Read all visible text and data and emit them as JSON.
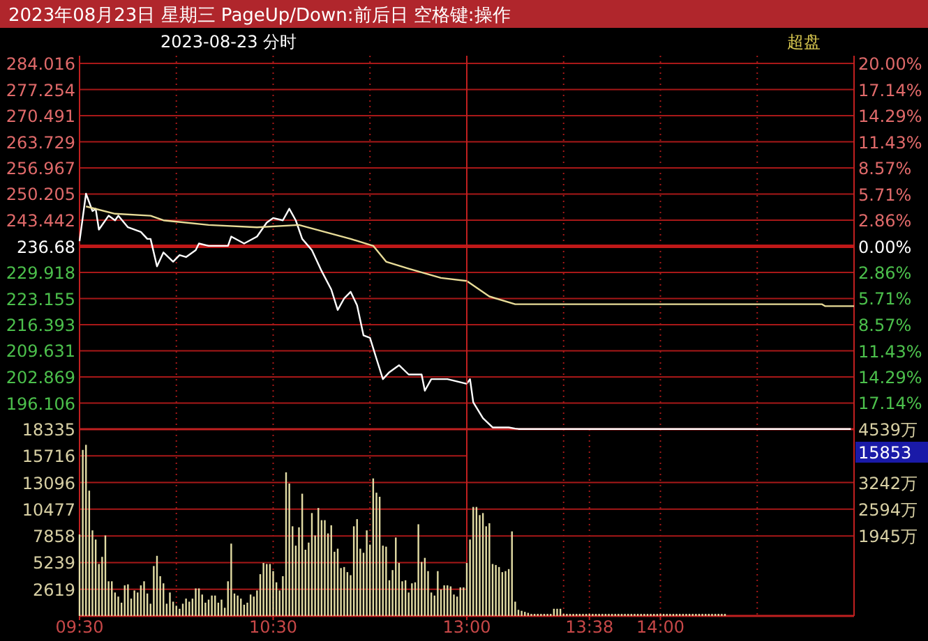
{
  "chart_data": [
    {
      "type": "line",
      "title": "2023年08月23日 星期三 PageUp/Down:前后日 空格键:操作",
      "subtitle": "2023-08-23 分时",
      "series": [
        {
          "color": "#ffffff",
          "x": [
            "2023-08-23T09:30",
            "2023-08-23T09:32",
            "2023-08-23T09:34",
            "2023-08-23T09:35",
            "2023-08-23T09:36",
            "2023-08-23T09:39",
            "2023-08-23T09:41",
            "2023-08-23T09:42",
            "2023-08-23T09:45",
            "2023-08-23T09:49",
            "2023-08-23T09:51",
            "2023-08-23T09:52",
            "2023-08-23T09:54",
            "2023-08-23T09:56",
            "2023-08-23T09:59",
            "2023-08-23T10:01",
            "2023-08-23T10:03",
            "2023-08-23T10:06",
            "2023-08-23T10:07",
            "2023-08-23T10:10",
            "2023-08-23T10:16",
            "2023-08-23T10:17",
            "2023-08-23T10:21",
            "2023-08-23T10:25",
            "2023-08-23T10:28",
            "2023-08-23T10:30",
            "2023-08-23T10:33",
            "2023-08-23T10:35",
            "2023-08-23T10:37",
            "2023-08-23T10:39",
            "2023-08-23T10:42",
            "2023-08-23T10:45",
            "2023-08-23T10:48",
            "2023-08-23T10:50",
            "2023-08-23T10:52",
            "2023-08-23T10:54",
            "2023-08-23T10:56",
            "2023-08-23T10:58",
            "2023-08-23T11:00",
            "2023-08-23T11:02",
            "2023-08-23T11:04",
            "2023-08-23T11:06",
            "2023-08-23T11:09",
            "2023-08-23T11:12",
            "2023-08-23T11:16",
            "2023-08-23T11:17",
            "2023-08-23T11:19",
            "2023-08-23T11:24",
            "2023-08-23T11:30"
          ],
          "values": [
            238.0,
            250.3,
            245.8,
            246.4,
            241.0,
            244.6,
            243.4,
            244.6,
            241.6,
            240.4,
            238.6,
            238.6,
            231.5,
            235.1,
            232.7,
            234.4,
            233.9,
            235.7,
            237.4,
            236.8,
            236.8,
            239.2,
            237.4,
            239.2,
            242.8,
            244.0,
            243.4,
            246.4,
            243.4,
            238.6,
            235.7,
            230.3,
            225.5,
            220.2,
            223.2,
            224.9,
            221.4,
            213.6,
            213.0,
            207.6,
            202.3,
            204.1,
            205.9,
            203.5,
            203.5,
            199.3,
            202.3,
            202.3,
            201.1
          ]
        },
        {
          "color": "#e8dc98",
          "x": [
            "2023-08-23T09:32",
            "2023-08-23T09:41",
            "2023-08-23T09:52",
            "2023-08-23T09:56",
            "2023-08-23T10:10",
            "2023-08-23T10:25",
            "2023-08-23T10:38",
            "2023-08-23T10:46",
            "2023-08-23T10:54",
            "2023-08-23T11:01",
            "2023-08-23T11:05",
            "2023-08-23T11:12",
            "2023-08-23T11:22",
            "2023-08-23T11:30"
          ],
          "values": [
            247.0,
            245.1,
            244.6,
            243.4,
            242.2,
            241.6,
            242.2,
            240.4,
            238.6,
            236.8,
            232.7,
            230.9,
            228.5,
            227.7
          ]
        }
      ],
      "xlim": [
        "2023-08-23T09:30",
        "2023-08-23T11:30"
      ],
      "xticks": [
        {
          "value": "2023-08-23T09:30",
          "label": null
        },
        {
          "value": "2023-08-23T10:00",
          "label": null
        },
        {
          "value": "2023-08-23T10:30",
          "label": null
        },
        {
          "value": "2023-08-23T11:00",
          "label": null
        }
      ],
      "ylim": [
        189.344,
        286
      ],
      "yticks": [
        284.016,
        277.254,
        270.491,
        263.729,
        256.967,
        250.205,
        243.442,
        236.68,
        229.918,
        223.155,
        216.393,
        209.631,
        202.869,
        196.106
      ],
      "ref_lines": [
        {
          "axis": "y",
          "value": 236.68,
          "color": "#c01818"
        }
      ],
      "grid": true,
      "tick_labels": "y"
    },
    {
      "type": "line",
      "annotations": [
        "超盘"
      ],
      "series": [
        {
          "color": "#ffffff",
          "x": [
            "2023-08-23T13:00",
            "2023-08-23T13:01",
            "2023-08-23T13:02",
            "2023-08-23T13:05",
            "2023-08-23T13:08",
            "2023-08-23T13:13",
            "2023-08-23T13:15",
            "2023-08-23T13:16",
            "2023-08-23T14:59"
          ],
          "values": [
            201.1,
            202.3,
            196.3,
            192.2,
            189.8,
            189.8,
            189.5,
            189.4,
            189.4
          ]
        },
        {
          "color": "#e8dc98",
          "x": [
            "2023-08-23T13:00",
            "2023-08-23T13:07",
            "2023-08-23T13:15",
            "2023-08-23T14:50",
            "2023-08-23T14:51",
            "2023-08-23T15:00"
          ],
          "values": [
            227.7,
            223.7,
            221.7,
            221.7,
            221.2,
            221.2
          ]
        }
      ],
      "xlim": [
        "2023-08-23T13:00",
        "2023-08-23T15:00"
      ],
      "xticks": [
        {
          "value": "2023-08-23T13:00",
          "label": null
        },
        {
          "value": "2023-08-23T13:30",
          "label": null
        },
        {
          "value": "2023-08-23T14:00",
          "label": null
        },
        {
          "value": "2023-08-23T14:30",
          "label": null
        }
      ],
      "ylim": [
        189.344,
        286
      ],
      "y2lim": [
        -20,
        20.84
      ],
      "y2ticks": [
        {
          "value": 20,
          "label": "20.00%"
        },
        {
          "value": 17.14,
          "label": "17.14%"
        },
        {
          "value": 14.29,
          "label": "14.29%"
        },
        {
          "value": 11.43,
          "label": "11.43%"
        },
        {
          "value": 8.57,
          "label": "8.57%"
        },
        {
          "value": 5.71,
          "label": "5.71%"
        },
        {
          "value": 2.86,
          "label": "2.86%"
        },
        {
          "value": 0,
          "label": "0.00%"
        },
        {
          "value": -2.86,
          "label": "2.86%"
        },
        {
          "value": -5.71,
          "label": "5.71%"
        },
        {
          "value": -8.57,
          "label": "8.57%"
        },
        {
          "value": -11.43,
          "label": "11.43%"
        },
        {
          "value": -14.29,
          "label": "14.29%"
        },
        {
          "value": -17.14,
          "label": "17.14%"
        }
      ],
      "ref_lines": [
        {
          "axis": "y",
          "value": 236.68,
          "color": "#c01818"
        }
      ],
      "grid": true,
      "tick_labels": "y"
    },
    {
      "type": "bar",
      "color": "#e2dca4",
      "x": [
        "2023-08-23T09:30",
        "2023-08-23T09:31",
        "2023-08-23T09:32",
        "2023-08-23T09:33",
        "2023-08-23T09:34",
        "2023-08-23T09:35",
        "2023-08-23T09:36",
        "2023-08-23T09:37",
        "2023-08-23T09:38",
        "2023-08-23T09:39",
        "2023-08-23T09:40",
        "2023-08-23T09:41",
        "2023-08-23T09:42",
        "2023-08-23T09:43",
        "2023-08-23T09:44",
        "2023-08-23T09:45",
        "2023-08-23T09:46",
        "2023-08-23T09:47",
        "2023-08-23T09:48",
        "2023-08-23T09:49",
        "2023-08-23T09:50",
        "2023-08-23T09:51",
        "2023-08-23T09:52",
        "2023-08-23T09:53",
        "2023-08-23T09:54",
        "2023-08-23T09:55",
        "2023-08-23T09:56",
        "2023-08-23T09:57",
        "2023-08-23T09:58",
        "2023-08-23T09:59",
        "2023-08-23T10:00",
        "2023-08-23T10:01",
        "2023-08-23T10:02",
        "2023-08-23T10:03",
        "2023-08-23T10:04",
        "2023-08-23T10:05",
        "2023-08-23T10:06",
        "2023-08-23T10:07",
        "2023-08-23T10:08",
        "2023-08-23T10:09",
        "2023-08-23T10:10",
        "2023-08-23T10:11",
        "2023-08-23T10:12",
        "2023-08-23T10:13",
        "2023-08-23T10:14",
        "2023-08-23T10:15",
        "2023-08-23T10:16",
        "2023-08-23T10:17",
        "2023-08-23T10:18",
        "2023-08-23T10:19",
        "2023-08-23T10:20",
        "2023-08-23T10:21",
        "2023-08-23T10:22",
        "2023-08-23T10:23",
        "2023-08-23T10:24",
        "2023-08-23T10:25",
        "2023-08-23T10:26",
        "2023-08-23T10:27",
        "2023-08-23T10:28",
        "2023-08-23T10:29",
        "2023-08-23T10:30",
        "2023-08-23T10:31",
        "2023-08-23T10:32",
        "2023-08-23T10:33",
        "2023-08-23T10:34",
        "2023-08-23T10:35",
        "2023-08-23T10:36",
        "2023-08-23T10:37",
        "2023-08-23T10:38",
        "2023-08-23T10:39",
        "2023-08-23T10:40",
        "2023-08-23T10:41",
        "2023-08-23T10:42",
        "2023-08-23T10:43",
        "2023-08-23T10:44",
        "2023-08-23T10:45",
        "2023-08-23T10:46",
        "2023-08-23T10:47",
        "2023-08-23T10:48",
        "2023-08-23T10:49",
        "2023-08-23T10:50",
        "2023-08-23T10:51",
        "2023-08-23T10:52",
        "2023-08-23T10:53",
        "2023-08-23T10:54",
        "2023-08-23T10:55",
        "2023-08-23T10:56",
        "2023-08-23T10:57",
        "2023-08-23T10:58",
        "2023-08-23T10:59",
        "2023-08-23T11:00",
        "2023-08-23T11:01",
        "2023-08-23T11:02",
        "2023-08-23T11:03",
        "2023-08-23T11:04",
        "2023-08-23T11:05",
        "2023-08-23T11:06",
        "2023-08-23T11:07",
        "2023-08-23T11:08",
        "2023-08-23T11:09",
        "2023-08-23T11:10",
        "2023-08-23T11:11",
        "2023-08-23T11:12",
        "2023-08-23T11:13",
        "2023-08-23T11:14",
        "2023-08-23T11:15",
        "2023-08-23T11:16",
        "2023-08-23T11:17",
        "2023-08-23T11:18",
        "2023-08-23T11:19",
        "2023-08-23T11:20",
        "2023-08-23T11:21",
        "2023-08-23T11:22",
        "2023-08-23T11:23",
        "2023-08-23T11:24",
        "2023-08-23T11:25",
        "2023-08-23T11:26",
        "2023-08-23T11:27",
        "2023-08-23T11:28",
        "2023-08-23T11:29"
      ],
      "values": [
        8000,
        16300,
        16800,
        12300,
        8400,
        7500,
        5100,
        5800,
        7900,
        3400,
        3400,
        2300,
        1900,
        1300,
        3000,
        3100,
        1700,
        2500,
        2300,
        3000,
        3400,
        2200,
        1200,
        4900,
        5900,
        3900,
        3200,
        1200,
        2300,
        1400,
        1000,
        700,
        1200,
        1700,
        1400,
        1700,
        2700,
        2700,
        2100,
        1300,
        1600,
        2000,
        2000,
        1300,
        1600,
        800,
        3400,
        7100,
        2200,
        2000,
        1700,
        1100,
        1300,
        2100,
        1900,
        2500,
        4100,
        5200,
        5100,
        5100,
        4400,
        3300,
        2500,
        3900,
        14100,
        13000,
        8800,
        6900,
        8700,
        12000,
        6500,
        7200,
        10100,
        7900,
        10600,
        9400,
        9400,
        8100,
        8900,
        6300,
        6600,
        4700,
        4800,
        4300,
        4000,
        8800,
        9500,
        6600,
        6200,
        8400,
        7000,
        13500,
        12100,
        11700,
        6900,
        6800,
        3500,
        4500,
        7700,
        5200,
        3400,
        3500,
        2300,
        3200,
        3300,
        9000,
        5300,
        5700,
        4400,
        2300,
        2000,
        4400,
        2600,
        3000,
        3000,
        2900,
        2100,
        1900,
        2800,
        2800
      ],
      "xlim": [
        "2023-08-23T09:30",
        "2023-08-23T11:30"
      ],
      "xticks": [
        {
          "value": "2023-08-23T09:30",
          "label": "09:30"
        },
        {
          "value": "2023-08-23T10:00",
          "label": null
        },
        {
          "value": "2023-08-23T10:30",
          "label": "10:30"
        },
        {
          "value": "2023-08-23T11:00",
          "label": null
        }
      ],
      "ylim": [
        0,
        18335
      ],
      "yticks": [
        18335,
        15716,
        13096,
        10477,
        7858,
        5239,
        2619
      ],
      "grid": true
    },
    {
      "type": "bar",
      "color": "#e2dca4",
      "annotations": [
        "15853"
      ],
      "x": [
        "2023-08-23T13:00",
        "2023-08-23T13:01",
        "2023-08-23T13:02",
        "2023-08-23T13:03",
        "2023-08-23T13:04",
        "2023-08-23T13:05",
        "2023-08-23T13:06",
        "2023-08-23T13:07",
        "2023-08-23T13:08",
        "2023-08-23T13:09",
        "2023-08-23T13:10",
        "2023-08-23T13:11",
        "2023-08-23T13:12",
        "2023-08-23T13:13",
        "2023-08-23T13:14",
        "2023-08-23T13:15",
        "2023-08-23T13:16",
        "2023-08-23T13:17",
        "2023-08-23T13:18",
        "2023-08-23T13:19",
        "2023-08-23T13:20",
        "2023-08-23T13:21",
        "2023-08-23T13:22",
        "2023-08-23T13:23",
        "2023-08-23T13:24",
        "2023-08-23T13:25",
        "2023-08-23T13:26",
        "2023-08-23T13:27",
        "2023-08-23T13:28",
        "2023-08-23T13:29",
        "2023-08-23T13:30",
        "2023-08-23T13:31",
        "2023-08-23T13:32",
        "2023-08-23T13:33",
        "2023-08-23T13:34",
        "2023-08-23T13:35",
        "2023-08-23T13:36",
        "2023-08-23T13:37",
        "2023-08-23T13:38",
        "2023-08-23T13:39",
        "2023-08-23T13:40",
        "2023-08-23T13:41",
        "2023-08-23T13:42",
        "2023-08-23T13:43",
        "2023-08-23T13:44",
        "2023-08-23T13:45",
        "2023-08-23T13:46",
        "2023-08-23T13:47",
        "2023-08-23T13:48",
        "2023-08-23T13:49",
        "2023-08-23T13:50",
        "2023-08-23T13:51",
        "2023-08-23T13:52",
        "2023-08-23T13:53",
        "2023-08-23T13:54",
        "2023-08-23T13:55",
        "2023-08-23T13:56",
        "2023-08-23T13:57",
        "2023-08-23T13:58",
        "2023-08-23T13:59",
        "2023-08-23T14:00",
        "2023-08-23T14:01",
        "2023-08-23T14:02",
        "2023-08-23T14:03",
        "2023-08-23T14:04",
        "2023-08-23T14:05",
        "2023-08-23T14:06",
        "2023-08-23T14:07",
        "2023-08-23T14:08",
        "2023-08-23T14:09",
        "2023-08-23T14:10",
        "2023-08-23T14:11",
        "2023-08-23T14:12",
        "2023-08-23T14:13",
        "2023-08-23T14:14",
        "2023-08-23T14:15",
        "2023-08-23T14:16",
        "2023-08-23T14:17",
        "2023-08-23T14:18",
        "2023-08-23T14:19",
        "2023-08-23T14:20"
      ],
      "values": [
        5200,
        7500,
        10700,
        10700,
        9900,
        10100,
        8800,
        9100,
        5100,
        5000,
        4800,
        4300,
        4400,
        4600,
        8300,
        1400,
        600,
        500,
        400,
        300,
        200,
        200,
        200,
        200,
        200,
        200,
        200,
        700,
        700,
        700,
        200,
        200,
        200,
        200,
        200,
        200,
        200,
        200,
        200,
        200,
        200,
        200,
        200,
        200,
        200,
        200,
        200,
        200,
        200,
        200,
        200,
        200,
        200,
        200,
        200,
        200,
        200,
        200,
        200,
        200,
        200,
        200,
        200,
        200,
        200,
        200,
        200,
        200,
        200,
        200,
        200,
        200,
        200,
        200,
        200,
        200,
        200,
        200,
        200,
        200,
        200
      ],
      "xlim": [
        "2023-08-23T13:00",
        "2023-08-23T15:00"
      ],
      "xticks": [
        {
          "value": "2023-08-23T13:00",
          "label": "13:00"
        },
        {
          "value": "2023-08-23T13:30",
          "label": null
        },
        {
          "value": "2023-08-23T13:38",
          "label": "13:38"
        },
        {
          "value": "2023-08-23T14:00",
          "label": "14:00"
        },
        {
          "value": "2023-08-23T14:30",
          "label": null
        }
      ],
      "ylim": [
        0,
        18335
      ],
      "y2lim": [
        0,
        4539
      ],
      "y2ticks": [
        {
          "value": 4539,
          "label": "4539万"
        },
        {
          "value": 3242,
          "label": "3242万"
        },
        {
          "value": 2594,
          "label": "2594万"
        },
        {
          "value": 1945,
          "label": "1945万"
        }
      ],
      "grid": true
    }
  ]
}
